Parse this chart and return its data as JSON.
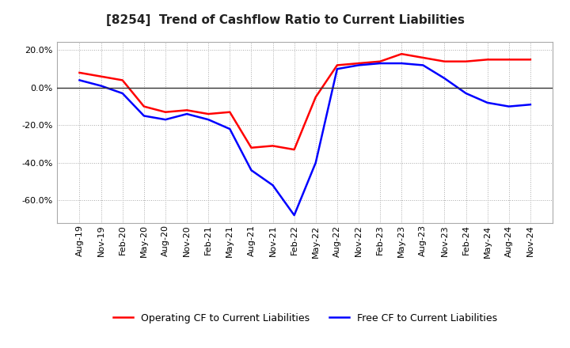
{
  "title": "[8254]  Trend of Cashflow Ratio to Current Liabilities",
  "x_labels": [
    "Aug-19",
    "Nov-19",
    "Feb-20",
    "May-20",
    "Aug-20",
    "Nov-20",
    "Feb-21",
    "May-21",
    "Aug-21",
    "Nov-21",
    "Feb-22",
    "May-22",
    "Aug-22",
    "Nov-22",
    "Feb-23",
    "May-23",
    "Aug-23",
    "Nov-23",
    "Feb-24",
    "May-24",
    "Aug-24",
    "Nov-24"
  ],
  "operating_cf": [
    0.08,
    0.06,
    0.04,
    -0.1,
    -0.13,
    -0.12,
    -0.14,
    -0.13,
    -0.32,
    -0.31,
    -0.33,
    -0.05,
    0.12,
    0.13,
    0.14,
    0.18,
    0.16,
    0.14,
    0.14,
    0.15,
    0.15,
    0.15
  ],
  "free_cf": [
    0.04,
    0.01,
    -0.03,
    -0.15,
    -0.17,
    -0.14,
    -0.17,
    -0.22,
    -0.44,
    -0.52,
    -0.68,
    -0.4,
    0.1,
    0.12,
    0.13,
    0.13,
    0.12,
    0.05,
    -0.03,
    -0.08,
    -0.1,
    -0.09
  ],
  "operating_color": "#ff0000",
  "free_color": "#0000ff",
  "ylim": [
    -0.72,
    0.245
  ],
  "yticks": [
    0.2,
    0.0,
    -0.2,
    -0.4,
    -0.6
  ],
  "background_color": "#ffffff",
  "grid_color": "#aaaaaa",
  "title_fontsize": 11,
  "tick_fontsize": 8,
  "legend_fontsize": 9,
  "legend_op": "Operating CF to Current Liabilities",
  "legend_free": "Free CF to Current Liabilities"
}
